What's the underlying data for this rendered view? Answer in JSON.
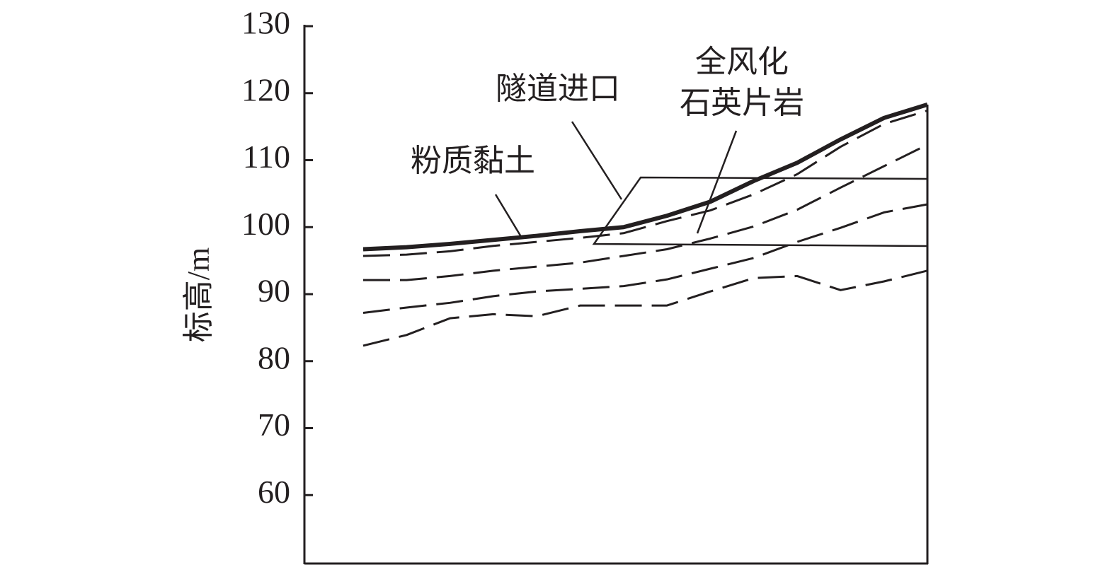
{
  "chart_data": {
    "type": "line",
    "y_label": "标高/m",
    "categories": [
      null,
      null,
      null,
      null,
      null,
      null,
      null,
      null,
      null,
      null,
      null,
      null,
      null,
      null
    ],
    "series": [
      {
        "values": [
          96.7,
          97.0,
          97.5,
          98.1,
          98.7,
          99.4,
          100.0,
          101.7,
          103.8,
          106.9,
          109.6,
          113.1,
          116.3,
          118.3
        ],
        "color": "#231f20",
        "dashed": false,
        "width": 6
      },
      {
        "values": [
          95.7,
          95.9,
          96.4,
          97.2,
          97.8,
          98.4,
          99.1,
          100.9,
          102.5,
          104.9,
          107.9,
          112.0,
          115.4,
          117.4
        ],
        "color": "#231f20",
        "dashed": true,
        "width": 3
      },
      {
        "values": [
          92.1,
          92.1,
          92.7,
          93.5,
          94.1,
          94.7,
          95.7,
          96.7,
          98.3,
          100.1,
          102.6,
          105.9,
          109.1,
          112.3
        ],
        "color": "#231f20",
        "dashed": true,
        "width": 3
      },
      {
        "values": [
          87.2,
          88.0,
          88.7,
          89.7,
          90.4,
          90.8,
          91.2,
          92.2,
          93.8,
          95.4,
          97.8,
          99.9,
          102.2,
          103.4
        ],
        "color": "#231f20",
        "dashed": true,
        "width": 3
      },
      {
        "values": [
          82.3,
          83.9,
          86.4,
          87.0,
          86.7,
          88.3,
          88.3,
          88.3,
          90.4,
          92.4,
          92.7,
          90.6,
          91.9,
          93.5
        ],
        "color": "#231f20",
        "dashed": true,
        "width": 3
      }
    ],
    "ylim": [
      50,
      130
    ],
    "yticks": [
      60,
      70,
      80,
      90,
      100,
      110,
      120,
      130
    ],
    "annotations": [
      "粉质黏土",
      "隧道进口",
      "全风化",
      "石英片岩"
    ]
  }
}
